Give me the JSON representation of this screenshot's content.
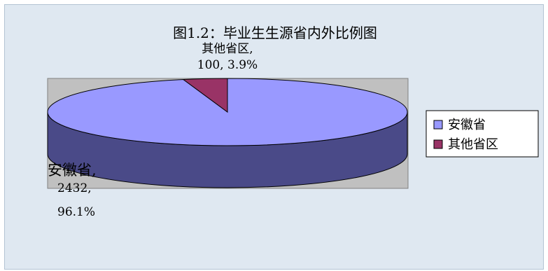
{
  "chart_data": {
    "type": "pie",
    "style": "3d",
    "title": "图1.2：毕业生生源省内外比例图",
    "categories": [
      "安徽省",
      "其他省区"
    ],
    "values": [
      2432,
      100
    ],
    "percents": [
      "96.1%",
      "3.9%"
    ],
    "data_labels": [
      [
        "安徽省,",
        "2432,",
        "96.1%"
      ],
      [
        "其他省区,",
        "100, 3.9%"
      ]
    ],
    "legend": {
      "position": "right",
      "entries": [
        "安徽省",
        "其他省区"
      ]
    },
    "colors": {
      "slice_top": [
        "#9999ff",
        "#993366"
      ],
      "slice_side": [
        "#4a4a88",
        "#60203f"
      ],
      "plot_area": "#c0c0c0",
      "chart_area": "#dfe8f1",
      "outline": "#000000"
    }
  }
}
